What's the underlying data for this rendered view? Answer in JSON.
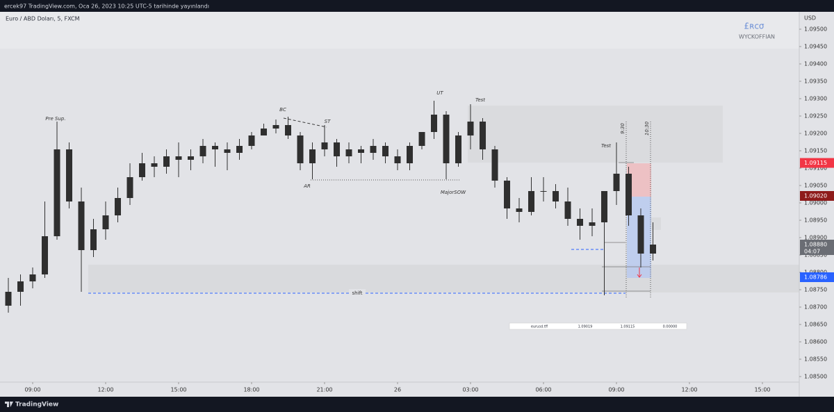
{
  "chart_data": {
    "type": "candlestick",
    "top_bar": "ercek97 TradingView.com, Oca 26, 2023 10:25 UTC-5 tarihinde yayınlandı",
    "title": "Euro / ABD Doları, 5, FXCM",
    "axis_unit": "USD",
    "logo": "£ʀcσ",
    "watermark": "WYCKOFFIAN",
    "brand": "TradingView",
    "color": "#2f2f2f",
    "x": [
      -1,
      -0.5,
      0,
      0.5,
      1,
      1.5,
      2,
      2.5,
      3,
      3.5,
      4,
      4.5,
      5,
      5.5,
      6,
      6.5,
      7,
      7.5,
      8,
      8.5,
      9,
      9.5,
      10,
      10.5,
      11,
      11.5,
      12,
      12.5,
      13,
      13.5,
      14,
      14.5,
      15,
      15.5,
      16,
      16.5,
      17,
      17.5,
      18,
      18.5,
      19,
      19.5,
      20,
      20.5,
      21,
      21.5,
      22,
      22.5,
      23,
      23.5,
      24,
      24.5,
      25,
      25.5
    ],
    "open": [
      1.08704,
      1.08744,
      1.08774,
      1.08794,
      1.08904,
      1.09154,
      1.09004,
      1.08864,
      1.08924,
      1.08964,
      1.09014,
      1.09074,
      1.09114,
      1.09104,
      1.09134,
      1.09124,
      1.09134,
      1.09164,
      1.09154,
      1.09144,
      1.09164,
      1.09194,
      1.09214,
      1.09224,
      1.09194,
      1.09114,
      1.09154,
      1.09174,
      1.09134,
      1.09154,
      1.09144,
      1.09164,
      1.09134,
      1.09114,
      1.09164,
      1.09204,
      1.09254,
      1.09114,
      1.09194,
      1.09234,
      1.09154,
      1.09064,
      1.08984,
      1.08974,
      1.09034,
      1.09034,
      1.09004,
      1.08954,
      1.08934,
      1.08944,
      1.09034,
      1.09084,
      1.08964,
      1.08854
    ],
    "high": [
      1.08784,
      1.08794,
      1.08814,
      1.09004,
      1.09234,
      1.09174,
      1.09044,
      1.08954,
      1.09004,
      1.09044,
      1.09114,
      1.09144,
      1.09134,
      1.09154,
      1.09174,
      1.09154,
      1.09184,
      1.09174,
      1.09174,
      1.09184,
      1.09204,
      1.09228,
      1.0924,
      1.09248,
      1.09204,
      1.09174,
      1.09224,
      1.09184,
      1.09174,
      1.09164,
      1.09184,
      1.09174,
      1.09154,
      1.09174,
      1.09204,
      1.09294,
      1.09264,
      1.09204,
      1.09284,
      1.09244,
      1.09164,
      1.09074,
      1.09014,
      1.09074,
      1.09074,
      1.09054,
      1.09044,
      1.08984,
      1.08984,
      1.09034,
      1.09174,
      1.09104,
      1.08984,
      1.08944
    ],
    "low": [
      1.08684,
      1.08704,
      1.08754,
      1.08784,
      1.08894,
      1.08984,
      1.08744,
      1.08844,
      1.08894,
      1.08944,
      1.08994,
      1.09064,
      1.09074,
      1.09084,
      1.09074,
      1.09094,
      1.09114,
      1.09104,
      1.09094,
      1.09124,
      1.09154,
      1.09194,
      1.092,
      1.09184,
      1.09094,
      1.09068,
      1.09134,
      1.09104,
      1.09114,
      1.09114,
      1.09124,
      1.09114,
      1.09094,
      1.09094,
      1.09154,
      1.09184,
      1.09068,
      1.09104,
      1.09154,
      1.09124,
      1.09044,
      1.08954,
      1.08944,
      1.08964,
      1.09004,
      1.08984,
      1.08934,
      1.08894,
      1.08904,
      1.08734,
      1.08994,
      1.08934,
      1.08814,
      1.08834
    ],
    "close": [
      1.08744,
      1.08774,
      1.08794,
      1.08904,
      1.09154,
      1.09004,
      1.08864,
      1.08924,
      1.08964,
      1.09014,
      1.09074,
      1.09114,
      1.09104,
      1.09134,
      1.09124,
      1.09134,
      1.09164,
      1.09154,
      1.09144,
      1.09164,
      1.09194,
      1.09214,
      1.09224,
      1.09194,
      1.09114,
      1.09154,
      1.09174,
      1.09134,
      1.09154,
      1.09144,
      1.09164,
      1.09134,
      1.09114,
      1.09164,
      1.09204,
      1.09254,
      1.09114,
      1.09194,
      1.09234,
      1.09154,
      1.09064,
      1.08984,
      1.08974,
      1.09034,
      1.09034,
      1.09004,
      1.08954,
      1.08934,
      1.08944,
      1.09034,
      1.09084,
      1.08964,
      1.08854,
      1.0888
    ],
    "xlim": [
      -1.343,
      31.514
    ],
    "xticks": [
      {
        "value": 0,
        "label": "09:00"
      },
      {
        "value": 3,
        "label": "12:00"
      },
      {
        "value": 6,
        "label": "15:00"
      },
      {
        "value": 9,
        "label": "18:00"
      },
      {
        "value": 12,
        "label": "21:00"
      },
      {
        "value": 15,
        "label": "26"
      },
      {
        "value": 18,
        "label": "03:00"
      },
      {
        "value": 21,
        "label": "06:00"
      },
      {
        "value": 24,
        "label": "09:00"
      },
      {
        "value": 27,
        "label": "12:00"
      },
      {
        "value": 30,
        "label": "15:00"
      }
    ],
    "ylim": [
      1.08484,
      1.0955
    ],
    "yticks": [
      {
        "value": 1.085,
        "label": "1.08500"
      },
      {
        "value": 1.0855,
        "label": "1.08550"
      },
      {
        "value": 1.086,
        "label": "1.08600"
      },
      {
        "value": 1.0865,
        "label": "1.08650"
      },
      {
        "value": 1.087,
        "label": "1.08700"
      },
      {
        "value": 1.0875,
        "label": "1.08750"
      },
      {
        "value": 1.088,
        "label": "1.08800"
      },
      {
        "value": 1.0885,
        "label": "1.08850"
      },
      {
        "value": 1.089,
        "label": "1.08900"
      },
      {
        "value": 1.0895,
        "label": "1.08950"
      },
      {
        "value": 1.09,
        "label": "1.09000"
      },
      {
        "value": 1.0905,
        "label": "1.09050"
      },
      {
        "value": 1.091,
        "label": "1.09100"
      },
      {
        "value": 1.0915,
        "label": "1.09150"
      },
      {
        "value": 1.092,
        "label": "1.09200"
      },
      {
        "value": 1.0925,
        "label": "1.09250"
      },
      {
        "value": 1.093,
        "label": "1.09300"
      },
      {
        "value": 1.0935,
        "label": "1.09350"
      },
      {
        "value": 1.094,
        "label": "1.09400"
      },
      {
        "value": 1.0945,
        "label": "1.09450"
      },
      {
        "value": 1.095,
        "label": "1.09500"
      }
    ],
    "price_markers": [
      {
        "value": 1.09115,
        "color": "#f23645"
      },
      {
        "value": 1.0902,
        "label": "1.09020",
        "color": "#8e1b1b"
      },
      {
        "value": 1.0888,
        "label": "1.08880",
        "color": "#6a6d74",
        "countdown": "04:07"
      },
      {
        "value": 1.08786,
        "color": "#2962ff"
      }
    ],
    "annotations": [
      "Pre Sup.",
      "BC",
      "ST",
      "AR",
      "UT",
      "Test",
      "MajorSOW",
      "Test",
      "9:30",
      "10:30",
      "shift"
    ],
    "position_table": [
      "eurusd.tff",
      "1.09019",
      "1.09115",
      "0.00000"
    ]
  }
}
